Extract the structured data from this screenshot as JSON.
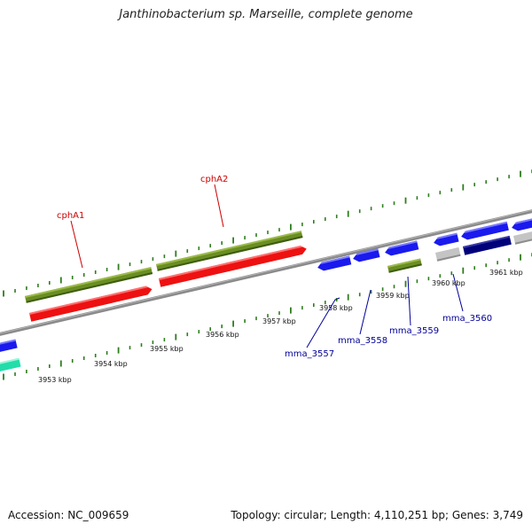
{
  "title": "Janthinobacterium sp. Marseille, complete genome",
  "footer": {
    "accession": "Accession: NC_009659",
    "summary": "Topology: circular; Length: 4,110,251 bp; Genes: 3,749"
  },
  "colors": {
    "backbone": "#8a8a8a",
    "tick": "#2e7d1e",
    "olive": "#6b8e23",
    "red": "#ee1111",
    "blue": "#1a1aee",
    "navy": "#00007a",
    "gray": "#c4c4c4",
    "teal": "#22ddaa",
    "label_red": "#cc0000",
    "label_blue": "#000099"
  },
  "kbp_labels": [
    "3953 kbp",
    "3954 kbp",
    "3955 kbp",
    "3956 kbp",
    "3957 kbp",
    "3958 kbp",
    "3959 kbp",
    "3960 kbp",
    "3961 kbp"
  ],
  "gene_labels": {
    "cphA1": "cphA1",
    "cphA2": "cphA2",
    "mma_3557": "mma_3557",
    "mma_3558": "mma_3558",
    "mma_3559": "mma_3559",
    "mma_3560": "mma_3560"
  }
}
